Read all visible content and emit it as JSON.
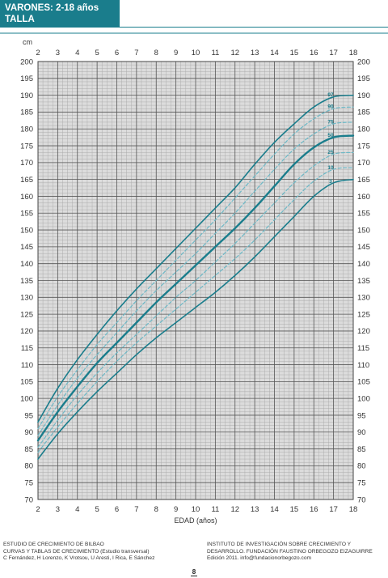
{
  "header": {
    "title": "VARONES: 2-18 años",
    "subtitle": "TALLA"
  },
  "footer": {
    "left": [
      "ESTUDIO DE CRECIMIENTO DE BILBAO",
      "CURVAS Y TABLAS DE CRECIMIENTO (Estudio transversal)",
      "C Fernández, H Lorenzo, K Vrotsou, U Aresti, I Rica, E Sánchez"
    ],
    "right": [
      "INSTITUTO DE INVESTIGACIÓN SOBRE CRECIMIENTO Y",
      "DESARROLLO. FUNDACIÓN FAUSTINO ORBEGOZO EIZAGUIRRE",
      "Edición 2011. info@fundacionorbegozo.com"
    ],
    "page": "8"
  },
  "chart_data": {
    "type": "line",
    "title": "VARONES: 2-18 años",
    "subtitle": "TALLA",
    "xlabel": "EDAD (años)",
    "ylabel": "cm",
    "xlim": [
      2,
      18
    ],
    "ylim": [
      70,
      200
    ],
    "x_ticks": [
      2,
      3,
      4,
      5,
      6,
      7,
      8,
      9,
      10,
      11,
      12,
      13,
      14,
      15,
      16,
      17,
      18
    ],
    "y_ticks": [
      70,
      75,
      80,
      85,
      90,
      95,
      100,
      105,
      110,
      115,
      120,
      125,
      130,
      135,
      140,
      145,
      150,
      155,
      160,
      165,
      170,
      175,
      180,
      185,
      190,
      195,
      200
    ],
    "grid": true,
    "colors": {
      "line": "#1a7d8c",
      "dashed": "#6db8c6",
      "grid_major": "#555555",
      "grid_minor": "#a8a8a8",
      "plot_bg": "#dcdcdc"
    },
    "x": [
      2,
      3,
      4,
      5,
      6,
      7,
      8,
      9,
      10,
      11,
      12,
      13,
      14,
      15,
      16,
      17,
      18
    ],
    "series": [
      {
        "name": "97",
        "style": "solid",
        "weight": "normal",
        "values": [
          93,
          103,
          111.5,
          119,
          126,
          132.5,
          138.5,
          144.5,
          150.5,
          156.5,
          162.5,
          169.5,
          176,
          181.5,
          186.5,
          189.5,
          190
        ]
      },
      {
        "name": "90",
        "style": "dashed",
        "weight": "normal",
        "values": [
          91,
          100.5,
          108.5,
          116,
          122.5,
          129,
          135,
          141,
          147,
          153,
          159.5,
          166,
          172.5,
          178.5,
          183,
          186,
          186.5
        ]
      },
      {
        "name": "75",
        "style": "dashed",
        "weight": "normal",
        "values": [
          89,
          98,
          106,
          113,
          119.5,
          126,
          132,
          137.5,
          143,
          149,
          155,
          161.5,
          168,
          174,
          178.5,
          181.5,
          182
        ]
      },
      {
        "name": "50",
        "style": "solid",
        "weight": "bold",
        "values": [
          87.5,
          96,
          103.5,
          110.5,
          116.5,
          122.5,
          128.5,
          134,
          139.5,
          145,
          150.5,
          156.5,
          163,
          169.5,
          174.5,
          177.5,
          178
        ]
      },
      {
        "name": "25",
        "style": "dashed",
        "weight": "normal",
        "values": [
          85.5,
          93.5,
          101,
          107.5,
          113.5,
          119,
          124.5,
          130,
          135,
          140.5,
          146,
          152,
          158,
          164,
          169,
          172.5,
          173
        ]
      },
      {
        "name": "10",
        "style": "dashed",
        "weight": "normal",
        "values": [
          84,
          91.5,
          98.5,
          105,
          111,
          116.5,
          121.5,
          126.5,
          131.5,
          136.5,
          141.5,
          147,
          153,
          159,
          164.5,
          168,
          168.5
        ]
      },
      {
        "name": "3",
        "style": "solid",
        "weight": "normal",
        "values": [
          82,
          89.5,
          96,
          102,
          107.5,
          113,
          118,
          122.5,
          127,
          131.5,
          136.5,
          142,
          148,
          154,
          160,
          164,
          165
        ]
      }
    ]
  }
}
